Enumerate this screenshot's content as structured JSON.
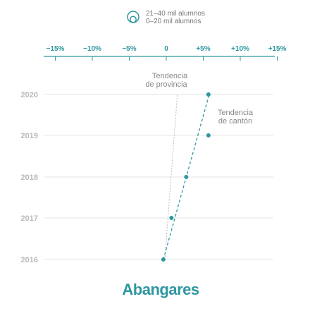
{
  "chart_data": {
    "type": "scatter",
    "title": "Abangares",
    "legend": {
      "placement": "top-center",
      "icon": "enrollment-size-circle-icon",
      "entries": [
        "21–40 mil alumnos",
        "0–20 mil alumnos"
      ]
    },
    "x_ticks": [
      "−15%",
      "−10%",
      "−5%",
      "0",
      "+5%",
      "+10%",
      "+15%"
    ],
    "x_tick_values": [
      -15,
      -10,
      -5,
      0,
      5,
      10,
      15
    ],
    "xlim": [
      -15,
      15
    ],
    "y_categories": [
      "2020",
      "2019",
      "2018",
      "2017",
      "2016"
    ],
    "grid": true,
    "series": [
      {
        "name": "",
        "points": [
          {
            "year": "2016",
            "x": -0.4
          },
          {
            "year": "2017",
            "x": 0.7
          },
          {
            "year": "2018",
            "x": 2.7
          },
          {
            "year": "2019",
            "x": 5.7
          },
          {
            "year": "2020",
            "x": 5.7
          }
        ]
      }
    ],
    "trend_canton": {
      "label_lines": [
        "Tendencia",
        "de cantón"
      ],
      "from": {
        "year": "2016",
        "x": -0.4
      },
      "to": {
        "year": "2020",
        "x": 5.8
      }
    },
    "trend_province": {
      "label_lines": [
        "Tendencia",
        "de provincia"
      ],
      "from": {
        "year": "2016",
        "x": -0.2
      },
      "to": {
        "year": "2020",
        "x": 1.5
      }
    },
    "colors": {
      "accent": "#2e97a0",
      "grid": "#e6e6e6",
      "axis_labels": "#b9b9b9",
      "province_trend": "#bbbbbb"
    }
  }
}
